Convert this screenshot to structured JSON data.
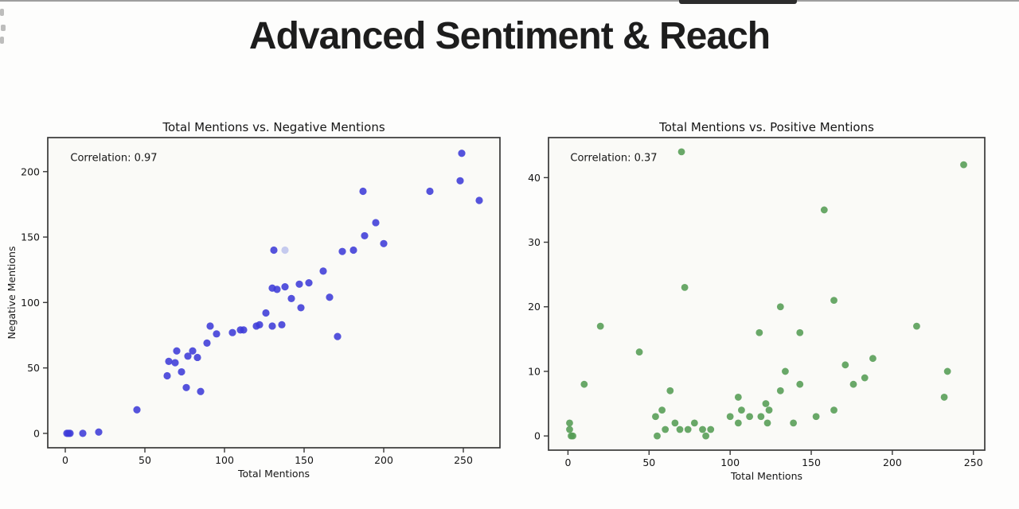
{
  "page": {
    "title": "Advanced Sentiment & Reach"
  },
  "chart_data": [
    {
      "type": "scatter",
      "title": "Total Mentions vs. Negative Mentions",
      "xlabel": "Total Mentions",
      "ylabel": "Negative Mentions",
      "annotation": "Correlation: 0.97",
      "correlation": 0.97,
      "dot_color": "#3d3bd8",
      "faded_point": [
        138,
        140
      ],
      "faded_point_color": "#c5caee",
      "xticks": [
        0,
        50,
        100,
        150,
        200,
        250
      ],
      "yticks": [
        0,
        50,
        100,
        150,
        200
      ],
      "xlim": [
        -11,
        273
      ],
      "ylim": [
        -11,
        226
      ],
      "grid": false,
      "legend": null,
      "points": [
        [
          1,
          0
        ],
        [
          2,
          0
        ],
        [
          3,
          0
        ],
        [
          11,
          0
        ],
        [
          21,
          1
        ],
        [
          45,
          18
        ],
        [
          64,
          44
        ],
        [
          65,
          55
        ],
        [
          69,
          54
        ],
        [
          70,
          63
        ],
        [
          73,
          47
        ],
        [
          76,
          35
        ],
        [
          77,
          59
        ],
        [
          80,
          63
        ],
        [
          83,
          58
        ],
        [
          85,
          32
        ],
        [
          89,
          69
        ],
        [
          91,
          82
        ],
        [
          95,
          76
        ],
        [
          105,
          77
        ],
        [
          110,
          79
        ],
        [
          112,
          79
        ],
        [
          120,
          82
        ],
        [
          122,
          83
        ],
        [
          126,
          92
        ],
        [
          130,
          82
        ],
        [
          136,
          83
        ],
        [
          130,
          111
        ],
        [
          133,
          110
        ],
        [
          138,
          112
        ],
        [
          147,
          114
        ],
        [
          153,
          115
        ],
        [
          142,
          103
        ],
        [
          148,
          96
        ],
        [
          162,
          124
        ],
        [
          166,
          104
        ],
        [
          171,
          74
        ],
        [
          131,
          140
        ],
        [
          174,
          139
        ],
        [
          181,
          140
        ],
        [
          188,
          151
        ],
        [
          195,
          161
        ],
        [
          200,
          145
        ],
        [
          187,
          185
        ],
        [
          229,
          185
        ],
        [
          248,
          193
        ],
        [
          249,
          214
        ],
        [
          260,
          178
        ]
      ]
    },
    {
      "type": "scatter",
      "title": "Total Mentions vs. Positive Mentions",
      "xlabel": "Total Mentions",
      "ylabel": "Positive Mentions",
      "annotation": "Correlation: 0.37",
      "correlation": 0.37,
      "dot_color": "#549c54",
      "faded_point": null,
      "faded_point_color": null,
      "xticks": [
        0,
        50,
        100,
        150,
        200,
        250
      ],
      "yticks": [
        0,
        10,
        20,
        30,
        40
      ],
      "xlim": [
        -12,
        257
      ],
      "ylim": [
        -2.2,
        46.2
      ],
      "grid": false,
      "legend": null,
      "points": [
        [
          1,
          1
        ],
        [
          1,
          2
        ],
        [
          2,
          0
        ],
        [
          3,
          0
        ],
        [
          10,
          8
        ],
        [
          20,
          17
        ],
        [
          44,
          13
        ],
        [
          54,
          3
        ],
        [
          55,
          0
        ],
        [
          58,
          4
        ],
        [
          60,
          1
        ],
        [
          63,
          7
        ],
        [
          66,
          2
        ],
        [
          69,
          1
        ],
        [
          72,
          23
        ],
        [
          70,
          44
        ],
        [
          74,
          1
        ],
        [
          78,
          2
        ],
        [
          83,
          1
        ],
        [
          85,
          0
        ],
        [
          88,
          1
        ],
        [
          100,
          3
        ],
        [
          105,
          6
        ],
        [
          105,
          2
        ],
        [
          107,
          4
        ],
        [
          112,
          3
        ],
        [
          118,
          16
        ],
        [
          119,
          3
        ],
        [
          122,
          5
        ],
        [
          123,
          2
        ],
        [
          124,
          4
        ],
        [
          131,
          7
        ],
        [
          131,
          20
        ],
        [
          134,
          10
        ],
        [
          139,
          2
        ],
        [
          143,
          16
        ],
        [
          143,
          8
        ],
        [
          153,
          3
        ],
        [
          158,
          35
        ],
        [
          164,
          21
        ],
        [
          164,
          4
        ],
        [
          171,
          11
        ],
        [
          176,
          8
        ],
        [
          183,
          9
        ],
        [
          188,
          12
        ],
        [
          215,
          17
        ],
        [
          232,
          6
        ],
        [
          234,
          10
        ],
        [
          244,
          42
        ]
      ]
    }
  ]
}
